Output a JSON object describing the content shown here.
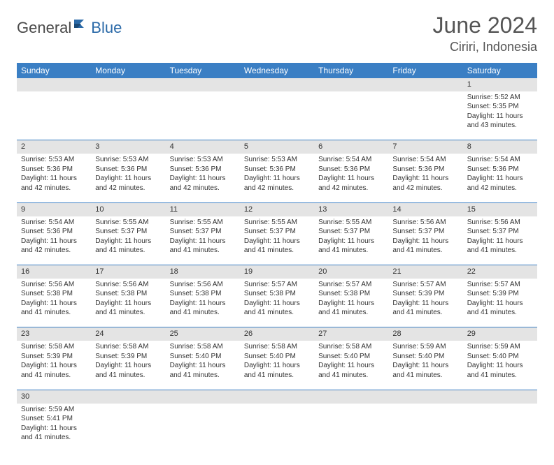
{
  "logo": {
    "part1": "General",
    "part2": "Blue"
  },
  "title": "June 2024",
  "location": "Ciriri, Indonesia",
  "colors": {
    "header_bg": "#3b7fc4",
    "header_text": "#ffffff",
    "daynum_bg": "#e4e4e4",
    "border": "#3b7fc4",
    "logo_gray": "#4a4a4a",
    "logo_blue": "#2b6aa8"
  },
  "day_headers": [
    "Sunday",
    "Monday",
    "Tuesday",
    "Wednesday",
    "Thursday",
    "Friday",
    "Saturday"
  ],
  "weeks": [
    {
      "nums": [
        "",
        "",
        "",
        "",
        "",
        "",
        "1"
      ],
      "cells": [
        null,
        null,
        null,
        null,
        null,
        null,
        {
          "sunrise": "Sunrise: 5:52 AM",
          "sunset": "Sunset: 5:35 PM",
          "day1": "Daylight: 11 hours",
          "day2": "and 43 minutes."
        }
      ]
    },
    {
      "nums": [
        "2",
        "3",
        "4",
        "5",
        "6",
        "7",
        "8"
      ],
      "cells": [
        {
          "sunrise": "Sunrise: 5:53 AM",
          "sunset": "Sunset: 5:36 PM",
          "day1": "Daylight: 11 hours",
          "day2": "and 42 minutes."
        },
        {
          "sunrise": "Sunrise: 5:53 AM",
          "sunset": "Sunset: 5:36 PM",
          "day1": "Daylight: 11 hours",
          "day2": "and 42 minutes."
        },
        {
          "sunrise": "Sunrise: 5:53 AM",
          "sunset": "Sunset: 5:36 PM",
          "day1": "Daylight: 11 hours",
          "day2": "and 42 minutes."
        },
        {
          "sunrise": "Sunrise: 5:53 AM",
          "sunset": "Sunset: 5:36 PM",
          "day1": "Daylight: 11 hours",
          "day2": "and 42 minutes."
        },
        {
          "sunrise": "Sunrise: 5:54 AM",
          "sunset": "Sunset: 5:36 PM",
          "day1": "Daylight: 11 hours",
          "day2": "and 42 minutes."
        },
        {
          "sunrise": "Sunrise: 5:54 AM",
          "sunset": "Sunset: 5:36 PM",
          "day1": "Daylight: 11 hours",
          "day2": "and 42 minutes."
        },
        {
          "sunrise": "Sunrise: 5:54 AM",
          "sunset": "Sunset: 5:36 PM",
          "day1": "Daylight: 11 hours",
          "day2": "and 42 minutes."
        }
      ]
    },
    {
      "nums": [
        "9",
        "10",
        "11",
        "12",
        "13",
        "14",
        "15"
      ],
      "cells": [
        {
          "sunrise": "Sunrise: 5:54 AM",
          "sunset": "Sunset: 5:36 PM",
          "day1": "Daylight: 11 hours",
          "day2": "and 42 minutes."
        },
        {
          "sunrise": "Sunrise: 5:55 AM",
          "sunset": "Sunset: 5:37 PM",
          "day1": "Daylight: 11 hours",
          "day2": "and 41 minutes."
        },
        {
          "sunrise": "Sunrise: 5:55 AM",
          "sunset": "Sunset: 5:37 PM",
          "day1": "Daylight: 11 hours",
          "day2": "and 41 minutes."
        },
        {
          "sunrise": "Sunrise: 5:55 AM",
          "sunset": "Sunset: 5:37 PM",
          "day1": "Daylight: 11 hours",
          "day2": "and 41 minutes."
        },
        {
          "sunrise": "Sunrise: 5:55 AM",
          "sunset": "Sunset: 5:37 PM",
          "day1": "Daylight: 11 hours",
          "day2": "and 41 minutes."
        },
        {
          "sunrise": "Sunrise: 5:56 AM",
          "sunset": "Sunset: 5:37 PM",
          "day1": "Daylight: 11 hours",
          "day2": "and 41 minutes."
        },
        {
          "sunrise": "Sunrise: 5:56 AM",
          "sunset": "Sunset: 5:37 PM",
          "day1": "Daylight: 11 hours",
          "day2": "and 41 minutes."
        }
      ]
    },
    {
      "nums": [
        "16",
        "17",
        "18",
        "19",
        "20",
        "21",
        "22"
      ],
      "cells": [
        {
          "sunrise": "Sunrise: 5:56 AM",
          "sunset": "Sunset: 5:38 PM",
          "day1": "Daylight: 11 hours",
          "day2": "and 41 minutes."
        },
        {
          "sunrise": "Sunrise: 5:56 AM",
          "sunset": "Sunset: 5:38 PM",
          "day1": "Daylight: 11 hours",
          "day2": "and 41 minutes."
        },
        {
          "sunrise": "Sunrise: 5:56 AM",
          "sunset": "Sunset: 5:38 PM",
          "day1": "Daylight: 11 hours",
          "day2": "and 41 minutes."
        },
        {
          "sunrise": "Sunrise: 5:57 AM",
          "sunset": "Sunset: 5:38 PM",
          "day1": "Daylight: 11 hours",
          "day2": "and 41 minutes."
        },
        {
          "sunrise": "Sunrise: 5:57 AM",
          "sunset": "Sunset: 5:38 PM",
          "day1": "Daylight: 11 hours",
          "day2": "and 41 minutes."
        },
        {
          "sunrise": "Sunrise: 5:57 AM",
          "sunset": "Sunset: 5:39 PM",
          "day1": "Daylight: 11 hours",
          "day2": "and 41 minutes."
        },
        {
          "sunrise": "Sunrise: 5:57 AM",
          "sunset": "Sunset: 5:39 PM",
          "day1": "Daylight: 11 hours",
          "day2": "and 41 minutes."
        }
      ]
    },
    {
      "nums": [
        "23",
        "24",
        "25",
        "26",
        "27",
        "28",
        "29"
      ],
      "cells": [
        {
          "sunrise": "Sunrise: 5:58 AM",
          "sunset": "Sunset: 5:39 PM",
          "day1": "Daylight: 11 hours",
          "day2": "and 41 minutes."
        },
        {
          "sunrise": "Sunrise: 5:58 AM",
          "sunset": "Sunset: 5:39 PM",
          "day1": "Daylight: 11 hours",
          "day2": "and 41 minutes."
        },
        {
          "sunrise": "Sunrise: 5:58 AM",
          "sunset": "Sunset: 5:40 PM",
          "day1": "Daylight: 11 hours",
          "day2": "and 41 minutes."
        },
        {
          "sunrise": "Sunrise: 5:58 AM",
          "sunset": "Sunset: 5:40 PM",
          "day1": "Daylight: 11 hours",
          "day2": "and 41 minutes."
        },
        {
          "sunrise": "Sunrise: 5:58 AM",
          "sunset": "Sunset: 5:40 PM",
          "day1": "Daylight: 11 hours",
          "day2": "and 41 minutes."
        },
        {
          "sunrise": "Sunrise: 5:59 AM",
          "sunset": "Sunset: 5:40 PM",
          "day1": "Daylight: 11 hours",
          "day2": "and 41 minutes."
        },
        {
          "sunrise": "Sunrise: 5:59 AM",
          "sunset": "Sunset: 5:40 PM",
          "day1": "Daylight: 11 hours",
          "day2": "and 41 minutes."
        }
      ]
    },
    {
      "nums": [
        "30",
        "",
        "",
        "",
        "",
        "",
        ""
      ],
      "cells": [
        {
          "sunrise": "Sunrise: 5:59 AM",
          "sunset": "Sunset: 5:41 PM",
          "day1": "Daylight: 11 hours",
          "day2": "and 41 minutes."
        },
        null,
        null,
        null,
        null,
        null,
        null
      ]
    }
  ]
}
